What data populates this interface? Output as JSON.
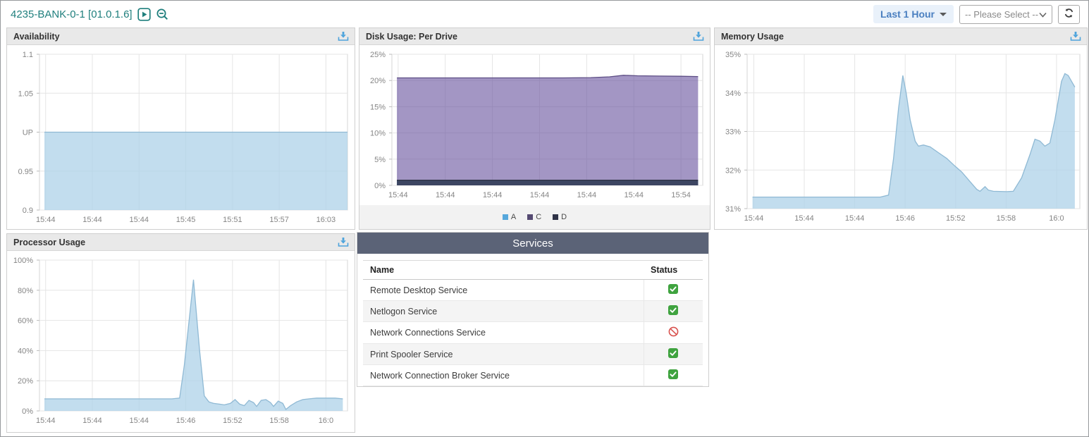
{
  "header": {
    "device_title": "4235-BANK-0-1 [01.0.1.6]",
    "time_range_label": "Last 1 Hour",
    "select_placeholder": "-- Please Select --",
    "icons": [
      "play-icon",
      "zoom-out-icon",
      "caret-down-icon",
      "chevron-down-icon",
      "refresh-icon",
      "download-icon"
    ]
  },
  "colors": {
    "title_teal": "#1f7f7d",
    "range_blue": "#4a7fc0",
    "download_blue": "#4da3dc",
    "services_header_bg": "#5b6377",
    "status_running_green": "#3fa33f",
    "status_stopped_red": "#d9534f",
    "area_blue_fill": "#add2e8",
    "disk_purple": "#6a55a0"
  },
  "panels": {
    "availability": {
      "title": "Availability"
    },
    "disk": {
      "title": "Disk Usage: Per Drive"
    },
    "memory": {
      "title": "Memory Usage"
    },
    "processor": {
      "title": "Processor Usage"
    }
  },
  "services_table": {
    "title": "Services",
    "columns": [
      "Name",
      "Status"
    ],
    "rows": [
      {
        "name": "Remote Desktop Service",
        "status": "running"
      },
      {
        "name": "Netlogon Service",
        "status": "running"
      },
      {
        "name": "Network Connections Service",
        "status": "stopped"
      },
      {
        "name": "Print Spooler Service",
        "status": "running"
      },
      {
        "name": "Network Connection Broker Service",
        "status": "running"
      }
    ]
  },
  "chart_data": [
    {
      "type": "area",
      "title": "Availability",
      "ylim": [
        0.9,
        1.1
      ],
      "yticks": [
        {
          "v": 1.1,
          "label": "1.1"
        },
        {
          "v": 1.05,
          "label": "1.05"
        },
        {
          "v": 1.0,
          "label": "UP"
        },
        {
          "v": 0.95,
          "label": "0.95"
        },
        {
          "v": 0.9,
          "label": "0.9"
        }
      ],
      "xticks": [
        "15:44",
        "15:44",
        "15:44",
        "15:45",
        "15:51",
        "15:57",
        "16:03"
      ],
      "margins": {
        "b": 27
      },
      "series": [
        {
          "name": "availability",
          "fill": "#add2e8",
          "fill_opacity": 0.75,
          "stroke": "#8fb9d4",
          "points": [
            [
              0.016,
              1.0
            ],
            [
              1.0,
              1.0
            ]
          ]
        }
      ]
    },
    {
      "type": "area",
      "title": "Disk Usage: Per Drive",
      "ylim": [
        0,
        25
      ],
      "yticks": [
        {
          "v": 25,
          "label": "25%"
        },
        {
          "v": 20,
          "label": "20%"
        },
        {
          "v": 15,
          "label": "15%"
        },
        {
          "v": 10,
          "label": "10%"
        },
        {
          "v": 5,
          "label": "5%"
        },
        {
          "v": 0,
          "label": "0%"
        }
      ],
      "xticks": [
        "15:44",
        "15:44",
        "15:44",
        "15:44",
        "15:44",
        "15:44",
        "15:54"
      ],
      "margins": {
        "b": 28
      },
      "legend": [
        {
          "label": "A",
          "color": "#57a8dc"
        },
        {
          "label": "C",
          "color": "#554a72"
        },
        {
          "label": "D",
          "color": "#2f3347"
        }
      ],
      "series": [
        {
          "name": "C",
          "fill": "#6a55a0",
          "fill_opacity": 0.62,
          "stroke": "#5d4e85",
          "points": [
            [
              0.016,
              20.5
            ],
            [
              0.55,
              20.5
            ],
            [
              0.64,
              20.55
            ],
            [
              0.7,
              20.7
            ],
            [
              0.745,
              21.0
            ],
            [
              0.79,
              20.9
            ],
            [
              0.86,
              20.85
            ],
            [
              0.93,
              20.8
            ],
            [
              0.985,
              20.75
            ]
          ]
        },
        {
          "name": "A",
          "fill": "#57a8dc",
          "fill_opacity": 0.75,
          "stroke": "#4a92c4",
          "points": [
            [
              0.016,
              0.85
            ],
            [
              0.985,
              0.85
            ]
          ]
        },
        {
          "name": "D",
          "fill": "#3a3e58",
          "fill_opacity": 0.92,
          "stroke": "#2f3347",
          "points": [
            [
              0.016,
              1.0
            ],
            [
              0.985,
              1.0
            ]
          ]
        }
      ]
    },
    {
      "type": "area",
      "title": "Memory Usage",
      "ylim": [
        31,
        35
      ],
      "yticks": [
        {
          "v": 35,
          "label": "35%"
        },
        {
          "v": 34,
          "label": "34%"
        },
        {
          "v": 33,
          "label": "33%"
        },
        {
          "v": 32,
          "label": "32%"
        },
        {
          "v": 31,
          "label": "31%"
        }
      ],
      "xticks": [
        "15:44",
        "15:44",
        "15:44",
        "15:46",
        "15:52",
        "15:58",
        "16:0"
      ],
      "margins": {
        "b": 29
      },
      "series": [
        {
          "name": "memory",
          "fill": "#add2e8",
          "fill_opacity": 0.75,
          "stroke": "#8fb9d4",
          "points": [
            [
              0.016,
              31.3
            ],
            [
              0.4,
              31.3
            ],
            [
              0.425,
              31.35
            ],
            [
              0.44,
              32.3
            ],
            [
              0.455,
              33.6
            ],
            [
              0.468,
              34.45
            ],
            [
              0.478,
              34.0
            ],
            [
              0.49,
              33.3
            ],
            [
              0.505,
              32.75
            ],
            [
              0.515,
              32.62
            ],
            [
              0.53,
              32.65
            ],
            [
              0.55,
              32.6
            ],
            [
              0.575,
              32.45
            ],
            [
              0.6,
              32.3
            ],
            [
              0.625,
              32.1
            ],
            [
              0.645,
              31.95
            ],
            [
              0.66,
              31.8
            ],
            [
              0.675,
              31.65
            ],
            [
              0.69,
              31.5
            ],
            [
              0.7,
              31.45
            ],
            [
              0.715,
              31.57
            ],
            [
              0.725,
              31.48
            ],
            [
              0.74,
              31.45
            ],
            [
              0.78,
              31.44
            ],
            [
              0.8,
              31.45
            ],
            [
              0.825,
              31.8
            ],
            [
              0.85,
              32.4
            ],
            [
              0.865,
              32.8
            ],
            [
              0.88,
              32.75
            ],
            [
              0.895,
              32.62
            ],
            [
              0.91,
              32.7
            ],
            [
              0.925,
              33.3
            ],
            [
              0.945,
              34.3
            ],
            [
              0.955,
              34.5
            ],
            [
              0.965,
              34.45
            ],
            [
              0.975,
              34.3
            ],
            [
              0.985,
              34.15
            ]
          ]
        }
      ]
    },
    {
      "type": "area",
      "title": "Processor Usage",
      "ylim": [
        0,
        100
      ],
      "yticks": [
        {
          "v": 100,
          "label": "100%"
        },
        {
          "v": 80,
          "label": "80%"
        },
        {
          "v": 60,
          "label": "60%"
        },
        {
          "v": 40,
          "label": "40%"
        },
        {
          "v": 20,
          "label": "20%"
        },
        {
          "v": 0,
          "label": "0%"
        }
      ],
      "xticks": [
        "15:44",
        "15:44",
        "15:44",
        "15:46",
        "15:52",
        "15:58",
        "16:0"
      ],
      "margins": {
        "b": 30
      },
      "series": [
        {
          "name": "processor",
          "fill": "#add2e8",
          "fill_opacity": 0.75,
          "stroke": "#8fb9d4",
          "points": [
            [
              0.016,
              8
            ],
            [
              0.43,
              8
            ],
            [
              0.455,
              8.5
            ],
            [
              0.47,
              30
            ],
            [
              0.5,
              87
            ],
            [
              0.52,
              40
            ],
            [
              0.535,
              10
            ],
            [
              0.55,
              6
            ],
            [
              0.565,
              5
            ],
            [
              0.585,
              4.5
            ],
            [
              0.6,
              4
            ],
            [
              0.62,
              5
            ],
            [
              0.635,
              7.5
            ],
            [
              0.65,
              4.5
            ],
            [
              0.665,
              3.5
            ],
            [
              0.68,
              7
            ],
            [
              0.695,
              5.5
            ],
            [
              0.705,
              3
            ],
            [
              0.72,
              7
            ],
            [
              0.735,
              7.5
            ],
            [
              0.75,
              5.5
            ],
            [
              0.76,
              3
            ],
            [
              0.775,
              6.5
            ],
            [
              0.79,
              5
            ],
            [
              0.8,
              1
            ],
            [
              0.815,
              3.5
            ],
            [
              0.835,
              6
            ],
            [
              0.855,
              7.5
            ],
            [
              0.875,
              8
            ],
            [
              0.9,
              8.5
            ],
            [
              0.93,
              8.5
            ],
            [
              0.96,
              8.5
            ],
            [
              0.985,
              8
            ]
          ]
        }
      ]
    }
  ]
}
